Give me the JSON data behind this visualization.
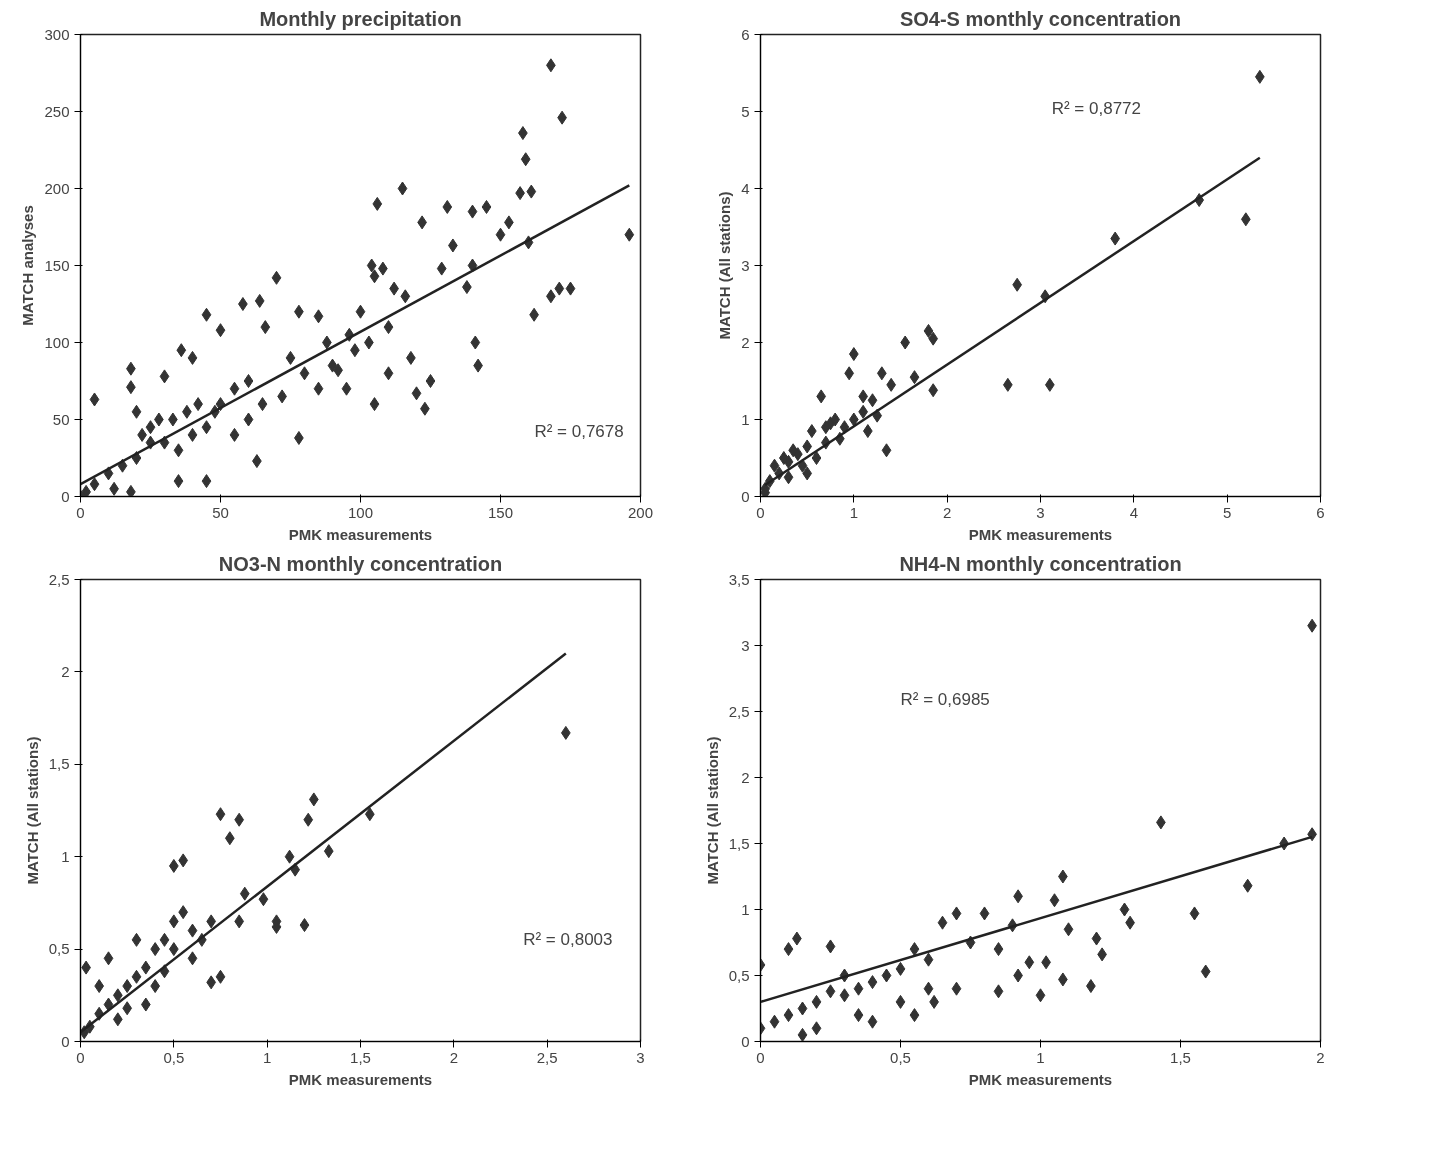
{
  "chart_data": [
    {
      "type": "scatter",
      "title": "Monthly precipitation",
      "xlabel": "PMK measurements",
      "ylabel": "MATCH analyses",
      "xlim": [
        0,
        200
      ],
      "ylim": [
        0,
        300
      ],
      "xticks": [
        0,
        50,
        100,
        150,
        200
      ],
      "yticks": [
        0,
        50,
        100,
        150,
        200,
        250,
        300
      ],
      "grid": false,
      "annotations": [
        "R² = 0,7678"
      ],
      "series": [
        {
          "marker": "diamond",
          "color": "#333333",
          "x": [
            168,
            172,
            158,
            159,
            157,
            161,
            196,
            160,
            168,
            171,
            162,
            175,
            150,
            153,
            140,
            145,
            131,
            122,
            133,
            129,
            140,
            138,
            141,
            142,
            125,
            123,
            120,
            118,
            116,
            112,
            106,
            115,
            104,
            105,
            108,
            100,
            96,
            105,
            110,
            92,
            88,
            85,
            70,
            78,
            64,
            66,
            58,
            50,
            45,
            40,
            36,
            30,
            18,
            18,
            5,
            20,
            60,
            55,
            75,
            80,
            72,
            85,
            95,
            78,
            63,
            50,
            45,
            40,
            35,
            30,
            25,
            20,
            15,
            10,
            5,
            2,
            0,
            12,
            25,
            35,
            45,
            18,
            60,
            65,
            90,
            98,
            103,
            110,
            55,
            48,
            42,
            28,
            22,
            33,
            38
          ],
          "values": [
            280,
            246,
            236,
            219,
            197,
            198,
            170,
            165,
            130,
            135,
            118,
            135,
            170,
            178,
            185,
            188,
            188,
            178,
            163,
            148,
            150,
            136,
            100,
            85,
            75,
            57,
            67,
            90,
            130,
            135,
            190,
            200,
            150,
            143,
            148,
            120,
            105,
            60,
            80,
            82,
            100,
            117,
            142,
            120,
            127,
            110,
            125,
            108,
            118,
            90,
            95,
            78,
            83,
            71,
            63,
            55,
            75,
            70,
            90,
            80,
            65,
            70,
            70,
            38,
            23,
            60,
            45,
            40,
            30,
            35,
            35,
            25,
            20,
            15,
            8,
            3,
            0,
            5,
            45,
            10,
            10,
            3,
            50,
            60,
            85,
            95,
            100,
            110,
            40,
            55,
            60,
            50,
            40,
            50,
            55
          ]
        },
        {
          "type": "line",
          "marker": "none",
          "color": "#222222",
          "x": [
            0,
            196
          ],
          "values": [
            8,
            202
          ]
        }
      ]
    },
    {
      "type": "scatter",
      "title": "SO4-S monthly concentration",
      "xlabel": "PMK measurements",
      "ylabel": "MATCH (All stations)",
      "xlim": [
        0,
        6
      ],
      "ylim": [
        0,
        6
      ],
      "xticks": [
        0,
        1,
        2,
        3,
        4,
        5,
        6
      ],
      "yticks": [
        0,
        1,
        2,
        3,
        4,
        5,
        6
      ],
      "grid": false,
      "annotations": [
        "R² = 0,8772"
      ],
      "series": [
        {
          "marker": "diamond",
          "color": "#333333",
          "x": [
            5.35,
            4.7,
            5.2,
            3.8,
            3.05,
            2.75,
            2.65,
            3.1,
            1.85,
            1.8,
            1.85,
            1.55,
            1.65,
            1.4,
            1.3,
            1.0,
            1.25,
            1.35,
            1.2,
            1.1,
            0.95,
            0.75,
            0.85,
            0.65,
            0.7,
            0.55,
            0.5,
            0.4,
            0.3,
            0.2,
            0.1,
            0.05,
            0.15,
            0.6,
            0.8,
            1.0,
            0.9,
            1.1,
            0.45,
            0.35,
            0.25,
            0.7,
            1.15,
            0.05,
            0.5,
            0.3
          ],
          "values": [
            5.45,
            3.85,
            3.6,
            3.35,
            2.6,
            2.75,
            1.45,
            1.45,
            1.38,
            2.15,
            2.05,
            2.0,
            1.55,
            1.45,
            1.6,
            1.85,
            1.05,
            0.6,
            1.25,
            1.3,
            1.6,
            0.95,
            0.75,
            1.3,
            0.9,
            0.85,
            0.65,
            0.55,
            0.45,
            0.3,
            0.2,
            0.1,
            0.4,
            0.5,
            1.0,
            1.0,
            0.9,
            1.1,
            0.4,
            0.6,
            0.5,
            0.7,
            0.85,
            0.05,
            0.3,
            0.25
          ]
        },
        {
          "type": "line",
          "marker": "none",
          "color": "#222222",
          "x": [
            0.05,
            5.35
          ],
          "values": [
            0.15,
            4.4
          ]
        }
      ]
    },
    {
      "type": "scatter",
      "title": "NO3-N monthly concentration",
      "xlabel": "PMK measurements",
      "ylabel": "MATCH (All stations)",
      "xlim": [
        0,
        3
      ],
      "ylim": [
        0,
        2.5
      ],
      "xticks": [
        0,
        {
          "value": 0.5,
          "label": "0,5"
        },
        1,
        {
          "value": 1.5,
          "label": "1,5"
        },
        2,
        {
          "value": 2.5,
          "label": "2,5"
        },
        3
      ],
      "yticks": [
        0,
        {
          "value": 0.5,
          "label": "0,5"
        },
        1,
        {
          "value": 1.5,
          "label": "1,5"
        },
        2,
        {
          "value": 2.5,
          "label": "2,5"
        }
      ],
      "grid": false,
      "annotations": [
        "R² = 0,8003"
      ],
      "series": [
        {
          "marker": "diamond",
          "color": "#333333",
          "x": [
            2.6,
            1.55,
            1.33,
            1.25,
            1.22,
            1.15,
            1.12,
            1.2,
            1.05,
            1.05,
            0.98,
            0.88,
            0.85,
            0.75,
            0.8,
            0.55,
            0.5,
            0.55,
            0.5,
            0.45,
            0.75,
            0.7,
            0.6,
            0.65,
            0.4,
            0.35,
            0.3,
            0.25,
            0.2,
            0.15,
            0.1,
            0.05,
            0.02,
            0.03,
            0.15,
            0.3,
            0.4,
            0.2,
            0.45,
            0.35,
            0.5,
            0.85,
            0.7,
            0.6,
            0.1,
            0.25
          ],
          "values": [
            1.67,
            1.23,
            1.03,
            1.31,
            1.2,
            0.93,
            1.0,
            0.63,
            0.62,
            0.65,
            0.77,
            0.8,
            1.2,
            1.23,
            1.1,
            0.98,
            0.95,
            0.7,
            0.65,
            0.55,
            0.35,
            0.32,
            0.6,
            0.55,
            0.5,
            0.4,
            0.35,
            0.3,
            0.25,
            0.2,
            0.15,
            0.08,
            0.05,
            0.4,
            0.45,
            0.55,
            0.3,
            0.12,
            0.38,
            0.2,
            0.5,
            0.65,
            0.65,
            0.45,
            0.3,
            0.18
          ]
        },
        {
          "type": "line",
          "marker": "none",
          "color": "#222222",
          "x": [
            0,
            2.6
          ],
          "values": [
            0.05,
            2.1
          ]
        }
      ]
    },
    {
      "type": "scatter",
      "title": "NH4-N monthly concentration",
      "xlabel": "PMK measurements",
      "ylabel": "MATCH (All stations)",
      "xlim": [
        0,
        2
      ],
      "ylim": [
        0,
        3.5
      ],
      "xticks": [
        0,
        {
          "value": 0.5,
          "label": "0,5"
        },
        1,
        {
          "value": 1.5,
          "label": "1,5"
        },
        2
      ],
      "yticks": [
        0,
        {
          "value": 0.5,
          "label": "0,5"
        },
        1,
        {
          "value": 1.5,
          "label": "1,5"
        },
        2,
        {
          "value": 2.5,
          "label": "2,5"
        },
        3,
        {
          "value": 3.5,
          "label": "3,5"
        }
      ],
      "grid": false,
      "annotations": [
        "R² = 0,6985"
      ],
      "series": [
        {
          "marker": "diamond",
          "color": "#333333",
          "x": [
            1.97,
            1.97,
            1.87,
            1.74,
            1.59,
            1.55,
            1.43,
            1.32,
            1.3,
            1.22,
            1.2,
            1.18,
            1.08,
            1.1,
            1.08,
            1.05,
            1.0,
            0.92,
            0.9,
            0.85,
            0.8,
            0.75,
            0.7,
            0.65,
            0.6,
            0.55,
            0.5,
            0.45,
            0.4,
            0.35,
            0.3,
            0.25,
            0.2,
            0.15,
            0.1,
            0.05,
            0.0,
            0.0,
            0.1,
            0.25,
            0.13,
            0.3,
            0.5,
            0.62,
            0.7,
            0.55,
            0.4,
            0.2,
            0.92,
            0.96,
            1.02,
            0.85,
            0.6,
            0.35,
            0.15
          ],
          "values": [
            3.15,
            1.57,
            1.5,
            1.18,
            0.53,
            0.97,
            1.66,
            0.9,
            1.0,
            0.66,
            0.78,
            0.42,
            0.47,
            0.85,
            1.25,
            1.07,
            0.35,
            1.1,
            0.88,
            0.7,
            0.97,
            0.75,
            0.97,
            0.9,
            0.62,
            0.7,
            0.55,
            0.5,
            0.45,
            0.4,
            0.35,
            0.38,
            0.3,
            0.25,
            0.2,
            0.15,
            0.1,
            0.58,
            0.7,
            0.72,
            0.78,
            0.5,
            0.3,
            0.3,
            0.4,
            0.2,
            0.15,
            0.1,
            0.5,
            0.6,
            0.6,
            0.38,
            0.4,
            0.2,
            0.05
          ]
        },
        {
          "type": "line",
          "marker": "none",
          "color": "#222222",
          "x": [
            0,
            1.97
          ],
          "values": [
            0.3,
            1.55
          ]
        }
      ]
    }
  ]
}
